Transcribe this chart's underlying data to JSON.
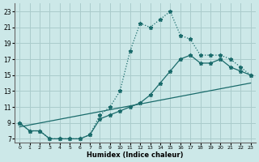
{
  "xlabel": "Humidex (Indice chaleur)",
  "bg_color": "#cce8e8",
  "grid_color": "#aacccc",
  "line_color": "#1a6b6b",
  "xlim": [
    -0.5,
    23.5
  ],
  "ylim": [
    6.5,
    24.0
  ],
  "xticks": [
    0,
    1,
    2,
    3,
    4,
    5,
    6,
    7,
    8,
    9,
    10,
    11,
    12,
    13,
    14,
    15,
    16,
    17,
    18,
    19,
    20,
    21,
    22,
    23
  ],
  "yticks": [
    7,
    9,
    11,
    13,
    15,
    17,
    19,
    21,
    23
  ],
  "curve1_x": [
    0,
    1,
    2,
    3,
    4,
    5,
    6,
    7,
    8,
    9,
    10,
    11,
    12,
    13,
    14,
    15,
    16,
    17,
    18,
    19,
    20,
    21,
    22,
    23
  ],
  "curve1_y": [
    9,
    8,
    8,
    7,
    7,
    7,
    7,
    7.5,
    10,
    11,
    13,
    18,
    21.5,
    21,
    22,
    23,
    20,
    19.5,
    17.5,
    17.5,
    17.5,
    17,
    16,
    15
  ],
  "curve2_x": [
    0,
    1,
    2,
    3,
    4,
    5,
    6,
    7,
    8,
    9,
    10,
    11,
    12,
    13,
    14,
    15,
    16,
    17,
    18,
    19,
    20,
    21,
    22,
    23
  ],
  "curve2_y": [
    9,
    8,
    8,
    7,
    7,
    7,
    7,
    7.5,
    9.5,
    10,
    10.5,
    11,
    11.5,
    12.5,
    14,
    15.5,
    17,
    17.5,
    16.5,
    16.5,
    17,
    16,
    15.5,
    15
  ],
  "curve3_x": [
    0,
    23
  ],
  "curve3_y": [
    8.5,
    14
  ]
}
